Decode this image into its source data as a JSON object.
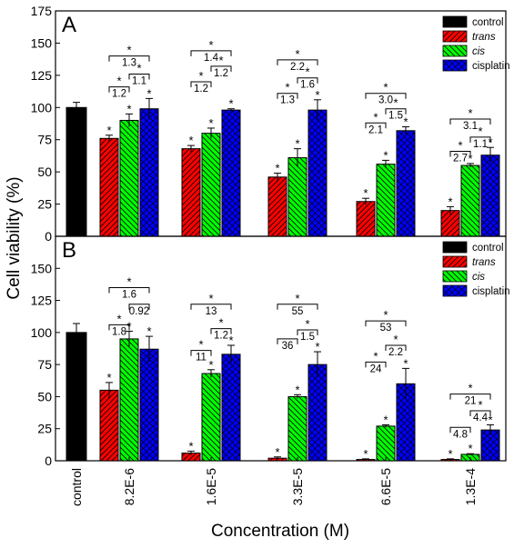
{
  "chart_data": [
    {
      "panel": "A",
      "type": "bar",
      "categories": [
        "control",
        "8.2E-6",
        "1.6E-5",
        "3.3E-5",
        "6.6E-5",
        "1.3E-4"
      ],
      "series": [
        {
          "name": "control",
          "values": [
            100,
            null,
            null,
            null,
            null,
            null
          ],
          "errors": [
            4,
            null,
            null,
            null,
            null,
            null
          ],
          "color": "#000000",
          "hatch": "none"
        },
        {
          "name": "trans",
          "values": [
            null,
            76,
            68,
            46,
            27,
            20
          ],
          "errors": [
            null,
            2.5,
            2.5,
            3,
            2.5,
            3
          ],
          "color": "#ff0000",
          "hatch": "forward"
        },
        {
          "name": "cis",
          "values": [
            null,
            90,
            80,
            61,
            56,
            55
          ],
          "errors": [
            null,
            5,
            4,
            7,
            3,
            1.5
          ],
          "color": "#00ff00",
          "hatch": "backward"
        },
        {
          "name": "cisplatin",
          "values": [
            null,
            99,
            98,
            98,
            82,
            63
          ],
          "errors": [
            null,
            8,
            1,
            8,
            3,
            6
          ],
          "color": "#0000ff",
          "hatch": "cross"
        }
      ],
      "ylim": [
        0,
        175
      ],
      "yticks": [
        0,
        25,
        50,
        75,
        100,
        125,
        150,
        175
      ],
      "star_label": "*",
      "comparisons": [
        [
          {
            "from": "trans",
            "to": "cis",
            "label": "1.2",
            "y": 116,
            "starred": true
          },
          {
            "from": "cis",
            "to": "cisplatin",
            "label": "1.1",
            "y": 126,
            "starred": true
          },
          {
            "from": "trans",
            "to": "cisplatin",
            "label": "1.3",
            "y": 140,
            "starred": true
          }
        ],
        [
          {
            "from": "trans",
            "to": "cis",
            "label": "1.2",
            "y": 120,
            "starred": true
          },
          {
            "from": "cis",
            "to": "cisplatin",
            "label": "1.2",
            "y": 132,
            "starred": true
          },
          {
            "from": "trans",
            "to": "cisplatin",
            "label": "1.4",
            "y": 144,
            "starred": true
          }
        ],
        [
          {
            "from": "trans",
            "to": "cis",
            "label": "1.3",
            "y": 111,
            "starred": true
          },
          {
            "from": "cis",
            "to": "cisplatin",
            "label": "1.6",
            "y": 123,
            "starred": true
          },
          {
            "from": "trans",
            "to": "cisplatin",
            "label": "2.2",
            "y": 137,
            "starred": true
          }
        ],
        [
          {
            "from": "trans",
            "to": "cis",
            "label": "2.1",
            "y": 88,
            "starred": true
          },
          {
            "from": "cis",
            "to": "cisplatin",
            "label": "1.5",
            "y": 99,
            "starred": true
          },
          {
            "from": "trans",
            "to": "cisplatin",
            "label": "3.0",
            "y": 111,
            "starred": true
          }
        ],
        [
          {
            "from": "trans",
            "to": "cis",
            "label": "2.7",
            "y": 66,
            "starred": true
          },
          {
            "from": "cis",
            "to": "cisplatin",
            "label": "1.1",
            "y": 77,
            "starred": true
          },
          {
            "from": "trans",
            "to": "cisplatin",
            "label": "3.1",
            "y": 91,
            "starred": true
          }
        ]
      ],
      "legend": [
        "control",
        "trans",
        "cis",
        "cisplatin"
      ],
      "legend_position": "top-right"
    },
    {
      "panel": "B",
      "type": "bar",
      "categories": [
        "control",
        "8.2E-6",
        "1.6E-5",
        "3.3E-5",
        "6.6E-5",
        "1.3E-4"
      ],
      "series": [
        {
          "name": "control",
          "values": [
            100,
            null,
            null,
            null,
            null,
            null
          ],
          "errors": [
            7,
            null,
            null,
            null,
            null,
            null
          ],
          "color": "#000000",
          "hatch": "none"
        },
        {
          "name": "trans",
          "values": [
            null,
            55,
            6,
            2,
            1,
            1
          ],
          "errors": [
            null,
            6,
            1.5,
            1,
            0.5,
            0.5
          ],
          "color": "#ff0000",
          "hatch": "forward"
        },
        {
          "name": "cis",
          "values": [
            null,
            95,
            68,
            50,
            27,
            5
          ],
          "errors": [
            null,
            6,
            3,
            1.5,
            1,
            0.5
          ],
          "color": "#00ff00",
          "hatch": "backward"
        },
        {
          "name": "cisplatin",
          "values": [
            null,
            87,
            83,
            75,
            60,
            24
          ],
          "errors": [
            null,
            10,
            7,
            10,
            12,
            4
          ],
          "color": "#0000ff",
          "hatch": "cross"
        }
      ],
      "ylim": [
        0,
        175
      ],
      "yticks": [
        0,
        25,
        50,
        75,
        100,
        125,
        150
      ],
      "star_label": "*",
      "comparisons": [
        [
          {
            "from": "trans",
            "to": "cis",
            "label": "1.8",
            "y": 106,
            "starred": true
          },
          {
            "from": "cis",
            "to": "cisplatin",
            "label": "0.92",
            "y": 122,
            "starred": false
          },
          {
            "from": "trans",
            "to": "cisplatin",
            "label": "1.6",
            "y": 135,
            "starred": true
          }
        ],
        [
          {
            "from": "trans",
            "to": "cis",
            "label": "11",
            "y": 86,
            "starred": true
          },
          {
            "from": "cis",
            "to": "cisplatin",
            "label": "1.2",
            "y": 103,
            "starred": true
          },
          {
            "from": "trans",
            "to": "cisplatin",
            "label": "13",
            "y": 122,
            "starred": true
          }
        ],
        [
          {
            "from": "trans",
            "to": "cis",
            "label": "36",
            "y": 95,
            "starred": false
          },
          {
            "from": "cis",
            "to": "cisplatin",
            "label": "1.5",
            "y": 102,
            "starred": true
          },
          {
            "from": "trans",
            "to": "cisplatin",
            "label": "55",
            "y": 122,
            "starred": true
          }
        ],
        [
          {
            "from": "trans",
            "to": "cis",
            "label": "24",
            "y": 77,
            "starred": true
          },
          {
            "from": "cis",
            "to": "cisplatin",
            "label": "2.2",
            "y": 90,
            "starred": true
          },
          {
            "from": "trans",
            "to": "cisplatin",
            "label": "53",
            "y": 109,
            "starred": true
          }
        ],
        [
          {
            "from": "trans",
            "to": "cis",
            "label": "4.8",
            "y": 26,
            "starred": false
          },
          {
            "from": "cis",
            "to": "cisplatin",
            "label": "4.4",
            "y": 39,
            "starred": true
          },
          {
            "from": "trans",
            "to": "cisplatin",
            "label": "21",
            "y": 52,
            "starred": true
          }
        ]
      ],
      "legend": [
        "control",
        "trans",
        "cis",
        "cisplatin"
      ],
      "legend_position": "top-right"
    }
  ],
  "panel_labels": [
    "A",
    "B"
  ],
  "ylabel": "Cell viability (%)",
  "xlabel": "Concentration (M)"
}
